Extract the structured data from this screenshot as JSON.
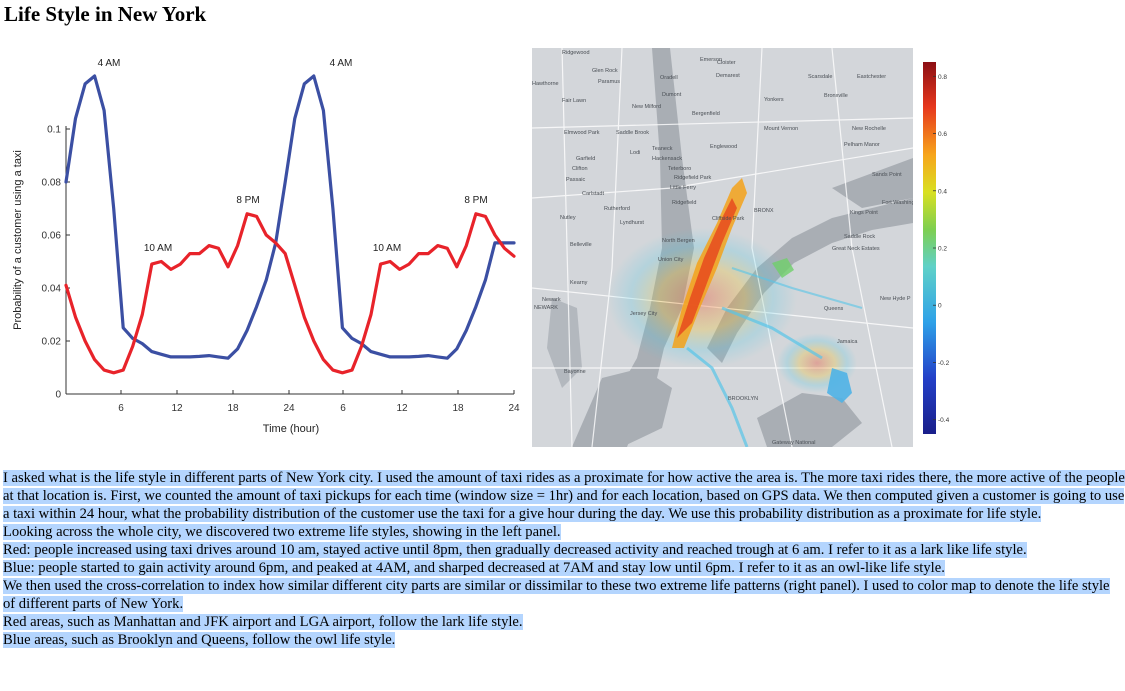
{
  "page": {
    "title": "Life Style in New York"
  },
  "chart_data": {
    "type": "line",
    "xlabel": "Time (hour)",
    "ylabel": "Probability of a customer using a taxi",
    "x_ticks": [
      "6",
      "12",
      "18",
      "24",
      "6",
      "12",
      "18",
      "24"
    ],
    "y_ticks": [
      "0",
      "0.02",
      "0.04",
      "0.06",
      "0.08",
      "0.1"
    ],
    "ylim": [
      0,
      0.12
    ],
    "xlim": [
      1,
      48
    ],
    "annotations": [
      "4 AM",
      "8 PM",
      "10 AM",
      "4 AM",
      "10 AM",
      "8 PM"
    ],
    "series": [
      {
        "color": "#3b4fa3",
        "x": [
          1,
          2,
          3,
          4,
          5,
          6,
          7,
          8,
          9,
          10,
          11,
          12,
          13,
          14,
          15,
          16,
          17,
          18,
          19,
          20,
          21,
          22,
          23,
          24,
          25,
          26,
          27,
          28,
          29,
          30,
          31,
          32,
          33,
          34,
          35,
          36,
          37,
          38,
          39,
          40,
          41,
          42,
          43,
          44,
          45,
          46,
          47,
          48
        ],
        "values": [
          0.08,
          0.104,
          0.117,
          0.12,
          0.107,
          0.07,
          0.025,
          0.021,
          0.019,
          0.016,
          0.015,
          0.014,
          0.014,
          0.014,
          0.0142,
          0.0145,
          0.014,
          0.0135,
          0.017,
          0.024,
          0.033,
          0.043,
          0.057,
          0.08,
          0.104,
          0.117,
          0.12,
          0.107,
          0.07,
          0.025,
          0.021,
          0.019,
          0.016,
          0.015,
          0.014,
          0.014,
          0.014,
          0.0142,
          0.0145,
          0.014,
          0.0135,
          0.017,
          0.024,
          0.033,
          0.043,
          0.057,
          0.057,
          0.057
        ]
      },
      {
        "color": "#e8232a",
        "x": [
          1,
          2,
          3,
          4,
          5,
          6,
          7,
          8,
          9,
          10,
          11,
          12,
          13,
          14,
          15,
          16,
          17,
          18,
          19,
          20,
          21,
          22,
          23,
          24,
          25,
          26,
          27,
          28,
          29,
          30,
          31,
          32,
          33,
          34,
          35,
          36,
          37,
          38,
          39,
          40,
          41,
          42,
          43,
          44,
          45,
          46,
          47,
          48
        ],
        "values": [
          0.041,
          0.029,
          0.02,
          0.013,
          0.009,
          0.008,
          0.009,
          0.018,
          0.03,
          0.049,
          0.05,
          0.047,
          0.049,
          0.053,
          0.053,
          0.056,
          0.055,
          0.048,
          0.056,
          0.068,
          0.067,
          0.06,
          0.057,
          0.053,
          0.041,
          0.029,
          0.02,
          0.013,
          0.009,
          0.008,
          0.009,
          0.018,
          0.03,
          0.049,
          0.05,
          0.047,
          0.049,
          0.053,
          0.053,
          0.056,
          0.055,
          0.048,
          0.056,
          0.068,
          0.067,
          0.06,
          0.055,
          0.052
        ]
      }
    ]
  },
  "colorbar": {
    "ticks": [
      "0.8",
      "0.6",
      "0.4",
      "0.2",
      "0",
      "-0.2",
      "-0.4"
    ],
    "range": [
      -0.45,
      0.85
    ]
  },
  "map_labels": [
    "Ridgewood",
    "Emerson",
    "Cloister",
    "Scarsdale",
    "Glen Rock",
    "Paramus",
    "Oradell",
    "Demarest",
    "Hawthorne",
    "Dumont",
    "Eastchester",
    "Fair Lawn",
    "New Milford",
    "Bergenfield",
    "Yonkers",
    "Bronxville",
    "Elmwood Park",
    "Saddle Brook",
    "Mount Vernon",
    "New Rochelle",
    "Lodi",
    "Teaneck",
    "Englewood",
    "Pelham Manor",
    "Garfield",
    "Hackensack",
    "Clifton",
    "Passaic",
    "Teterboro",
    "Ridgefield Park",
    "Little Ferry",
    "Carlstadt",
    "Rutherford",
    "Ridgefield",
    "Cliffside Park",
    "Kings Point",
    "Nutley",
    "Lyndhurst",
    "North Bergen",
    "Great Neck Estates",
    "Belleville",
    "Union City",
    "Kearny",
    "Newark",
    "NEWARK",
    "Jersey City",
    "Queens",
    "New Hyde P",
    "Bayonne",
    "Jamaica",
    "BROOKLYN",
    "Gateway National",
    "BRONX",
    "Fort Washington",
    "Sands Point",
    "Saddle Rock"
  ],
  "description": {
    "paragraph1": "I asked what is the life style in different parts of New York city. I used the amount of taxi rides as a proximate for how active the area is. The more taxi rides there, the more active of the people at that location is. First, we counted the amount of taxi pickups for each time (window size = 1hr) and for each location, based on GPS data. We then computed given a customer is going to use a taxi within 24 hour, what the probability distribution of the customer use the taxi for a give hour during the day. We use this probability distribution as a proximate for life style.",
    "paragraph2": "Looking across the whole city, we discovered two extreme life styles, showing in the left panel.",
    "paragraph3": "Red: people increased using taxi drives around 10 am, stayed active until 8pm, then gradually decreased activity and reached trough at 6 am. I refer to it as a lark like life style.",
    "paragraph4": "Blue: people started to gain activity around 6pm, and peaked at 4AM, and sharped decreased at 7AM and stay low until 6pm. I refer to it as an owl-like life style.",
    "paragraph5": "We then used the cross-correlation to index how similar different city parts are similar or dissimilar to these two extreme life patterns (right panel). I used to color map to denote the life style of different parts of New York.",
    "paragraph6": "Red areas, such as Manhattan and JFK airport and LGA airport, follow the lark life style.",
    "paragraph7": "Blue areas, such as Brooklyn and Queens, follow the owl life style."
  }
}
